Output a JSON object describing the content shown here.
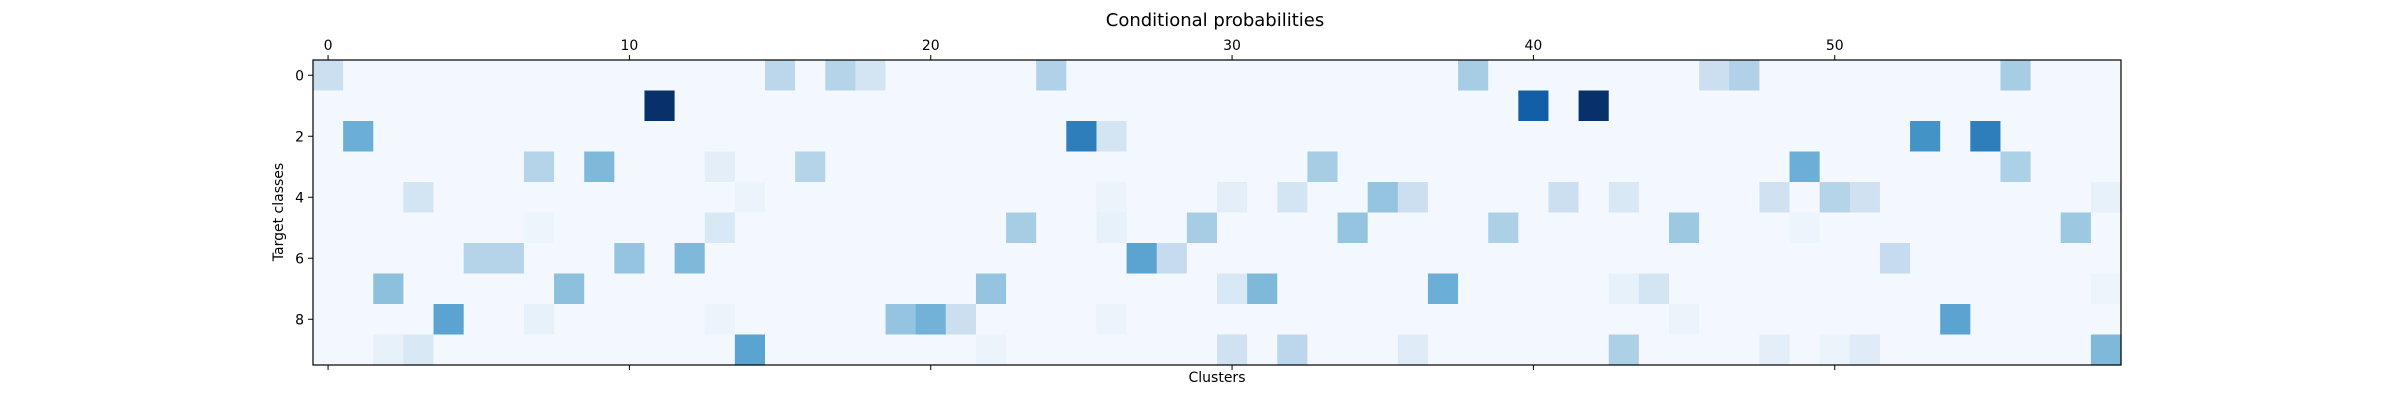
{
  "chart_data": {
    "type": "heatmap",
    "title": "Conditional probabilities",
    "xlabel": "Clusters",
    "ylabel": "Target classes",
    "n_clusters": 60,
    "n_classes": 10,
    "x_ticks": [
      0,
      10,
      20,
      30,
      40,
      50
    ],
    "y_ticks": [
      0,
      2,
      4,
      6,
      8
    ],
    "colormap": "Blues",
    "value_range": [
      0,
      1
    ],
    "base_value": 0.02,
    "cells": [
      [
        0,
        0,
        0.22
      ],
      [
        0,
        15,
        0.28
      ],
      [
        0,
        17,
        0.3
      ],
      [
        0,
        18,
        0.18
      ],
      [
        0,
        24,
        0.32
      ],
      [
        0,
        38,
        0.35
      ],
      [
        0,
        46,
        0.22
      ],
      [
        0,
        47,
        0.32
      ],
      [
        0,
        56,
        0.35
      ],
      [
        1,
        11,
        1.0
      ],
      [
        1,
        40,
        0.82
      ],
      [
        1,
        42,
        1.0
      ],
      [
        2,
        1,
        0.5
      ],
      [
        2,
        25,
        0.7
      ],
      [
        2,
        26,
        0.18
      ],
      [
        2,
        53,
        0.62
      ],
      [
        2,
        55,
        0.7
      ],
      [
        3,
        7,
        0.3
      ],
      [
        3,
        9,
        0.45
      ],
      [
        3,
        13,
        0.1
      ],
      [
        3,
        16,
        0.3
      ],
      [
        3,
        33,
        0.35
      ],
      [
        3,
        49,
        0.5
      ],
      [
        3,
        56,
        0.33
      ],
      [
        4,
        3,
        0.18
      ],
      [
        4,
        14,
        0.06
      ],
      [
        4,
        26,
        0.06
      ],
      [
        4,
        30,
        0.1
      ],
      [
        4,
        32,
        0.18
      ],
      [
        4,
        35,
        0.4
      ],
      [
        4,
        36,
        0.22
      ],
      [
        4,
        41,
        0.22
      ],
      [
        4,
        43,
        0.15
      ],
      [
        4,
        48,
        0.2
      ],
      [
        4,
        50,
        0.3
      ],
      [
        4,
        51,
        0.2
      ],
      [
        4,
        59,
        0.08
      ],
      [
        5,
        7,
        0.05
      ],
      [
        5,
        13,
        0.15
      ],
      [
        5,
        23,
        0.35
      ],
      [
        5,
        26,
        0.08
      ],
      [
        5,
        29,
        0.35
      ],
      [
        5,
        34,
        0.4
      ],
      [
        5,
        39,
        0.33
      ],
      [
        5,
        45,
        0.38
      ],
      [
        5,
        49,
        0.05
      ],
      [
        5,
        58,
        0.38
      ],
      [
        6,
        5,
        0.3
      ],
      [
        6,
        6,
        0.3
      ],
      [
        6,
        10,
        0.4
      ],
      [
        6,
        12,
        0.45
      ],
      [
        6,
        27,
        0.55
      ],
      [
        6,
        28,
        0.25
      ],
      [
        6,
        52,
        0.25
      ],
      [
        7,
        2,
        0.42
      ],
      [
        7,
        8,
        0.42
      ],
      [
        7,
        22,
        0.4
      ],
      [
        7,
        30,
        0.15
      ],
      [
        7,
        31,
        0.45
      ],
      [
        7,
        37,
        0.5
      ],
      [
        7,
        43,
        0.08
      ],
      [
        7,
        44,
        0.18
      ],
      [
        7,
        59,
        0.05
      ],
      [
        8,
        4,
        0.55
      ],
      [
        8,
        7,
        0.08
      ],
      [
        8,
        13,
        0.06
      ],
      [
        8,
        19,
        0.4
      ],
      [
        8,
        20,
        0.48
      ],
      [
        8,
        21,
        0.22
      ],
      [
        8,
        26,
        0.06
      ],
      [
        8,
        45,
        0.06
      ],
      [
        8,
        54,
        0.55
      ],
      [
        9,
        2,
        0.08
      ],
      [
        9,
        3,
        0.15
      ],
      [
        9,
        14,
        0.55
      ],
      [
        9,
        22,
        0.06
      ],
      [
        9,
        30,
        0.2
      ],
      [
        9,
        32,
        0.28
      ],
      [
        9,
        36,
        0.12
      ],
      [
        9,
        43,
        0.33
      ],
      [
        9,
        48,
        0.1
      ],
      [
        9,
        50,
        0.06
      ],
      [
        9,
        51,
        0.12
      ],
      [
        9,
        59,
        0.45
      ]
    ]
  }
}
